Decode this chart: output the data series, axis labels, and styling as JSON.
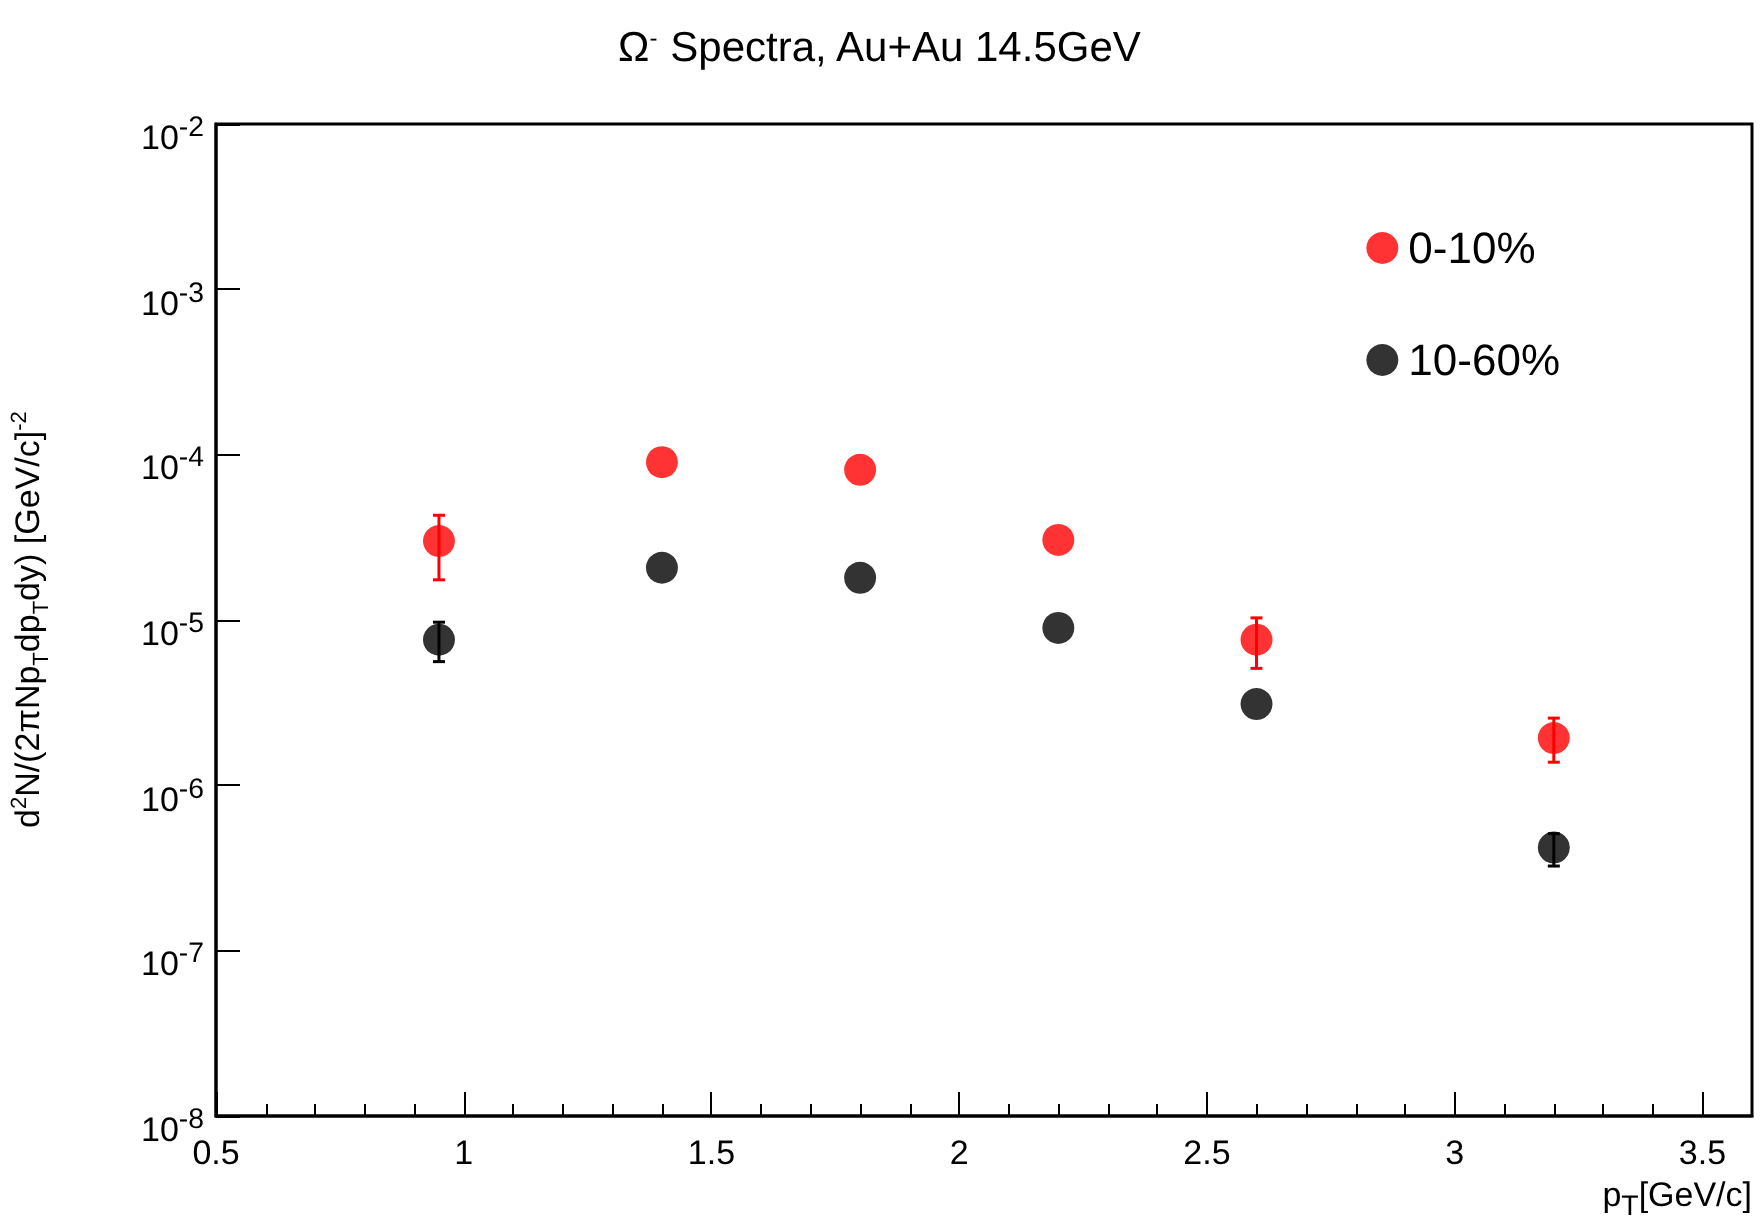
{
  "chart_data": {
    "type": "scatter",
    "title": "Ω$^{-}$ Spectra, Au+Au 14.5GeV",
    "xlabel": "p$_{T}$[GeV/c]",
    "ylabel": "d$^{2}$N/(2πNp$_{T}$dp$_{T}$dy) [GeV/c]$^{-2}$",
    "x": [
      0.95,
      1.4,
      1.8,
      2.2,
      2.6,
      3.2
    ],
    "series": [
      {
        "name": "0-10%",
        "color": "#ff0000",
        "values": [
          3e-05,
          9e-05,
          8.1e-05,
          3.05e-05,
          7.6e-06,
          1.93e-06
        ],
        "errors": [
          [
            1.75e-05,
            4.3e-05
          ],
          null,
          null,
          null,
          [
            5.1e-06,
            1.03e-05
          ],
          [
            1.38e-06,
            2.55e-06
          ]
        ]
      },
      {
        "name": "10-60%",
        "color": "#000000",
        "values": [
          7.6e-06,
          2.07e-05,
          1.8e-05,
          8.95e-06,
          3.1e-06,
          4.2e-07
        ],
        "errors": [
          [
            5.6e-06,
            9.7e-06
          ],
          null,
          null,
          null,
          null,
          [
            3.25e-07,
            5.1e-07
          ]
        ]
      }
    ],
    "xlim": [
      0.5,
      3.6
    ],
    "xticks": [
      0.5,
      1,
      1.5,
      2,
      2.5,
      3,
      3.5
    ],
    "ylim": [
      1e-08,
      0.01
    ],
    "yticks": [
      {
        "value": 1e-08,
        "label": "10$^{-8}$"
      },
      {
        "value": 1e-07,
        "label": "10$^{-7}$"
      },
      {
        "value": 1e-06,
        "label": "10$^{-6}$"
      },
      {
        "value": 1e-05,
        "label": "10$^{-5}$"
      },
      {
        "value": 0.0001,
        "label": "10$^{-4}$"
      },
      {
        "value": 0.001,
        "label": "10$^{-3}$"
      },
      {
        "value": 0.01,
        "label": "10$^{-2}$"
      }
    ],
    "log": "y",
    "grid": false,
    "legend": "top right",
    "marker": "circle"
  }
}
